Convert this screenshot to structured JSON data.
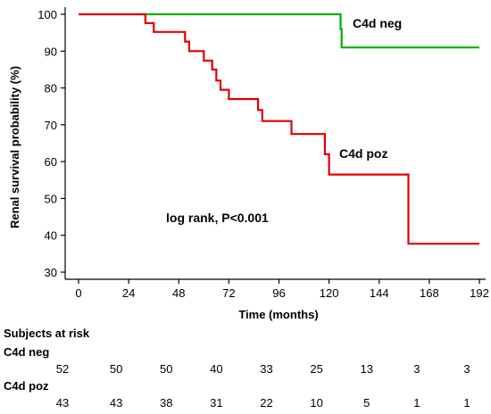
{
  "chart_data": {
    "type": "line",
    "title": "",
    "xlabel": "Time (months)",
    "ylabel": "Renal survival probability (%)",
    "xlim": [
      0,
      192
    ],
    "ylim": [
      28,
      100
    ],
    "xticks": [
      0,
      24,
      48,
      72,
      96,
      120,
      144,
      168,
      192
    ],
    "yticks": [
      30,
      40,
      50,
      60,
      70,
      80,
      90,
      100
    ],
    "grid": false,
    "step": true,
    "series": [
      {
        "name": "C4d neg",
        "color": "#00b000",
        "x": [
          0,
          125,
          125.5,
          126,
          192
        ],
        "y": [
          100,
          100,
          96,
          91,
          91
        ]
      },
      {
        "name": "C4d poz",
        "color": "#e00000",
        "x": [
          0,
          28,
          32,
          36,
          49,
          51,
          53,
          60,
          64,
          66,
          68,
          72,
          76,
          86,
          88,
          102,
          118,
          120,
          158,
          192
        ],
        "y": [
          100,
          100,
          97.6,
          95.2,
          95.2,
          92.6,
          90,
          87.4,
          85,
          82,
          79.5,
          77,
          77,
          74,
          71,
          67.5,
          62,
          56.5,
          37.7,
          37.7
        ]
      }
    ],
    "annotation": "log rank, P<0.001"
  },
  "risk_table": {
    "title": "Subjects at risk",
    "rows": [
      {
        "label": "C4d neg",
        "values": [
          "52",
          "50",
          "50",
          "40",
          "33",
          "25",
          "13",
          "3",
          "3"
        ]
      },
      {
        "label": "C4d poz",
        "values": [
          "43",
          "43",
          "38",
          "31",
          "22",
          "10",
          "5",
          "1",
          "1"
        ]
      }
    ]
  }
}
